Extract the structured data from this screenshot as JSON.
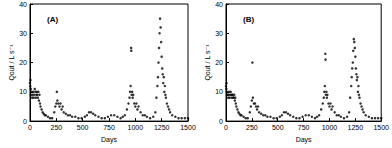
{
  "chart_data": [
    {
      "type": "scatter",
      "title": "(A)",
      "x_label": "Days",
      "y_label": "Qout / L s⁻¹",
      "color": "#000000",
      "marker": "circle",
      "grid": false,
      "xlim": [
        0,
        1500
      ],
      "xticks": [
        0,
        250,
        500,
        750,
        1000,
        1250,
        1500
      ],
      "ylim": [
        0,
        40
      ],
      "yticks": [
        0,
        10,
        20,
        30,
        40
      ],
      "x": [
        0,
        3,
        5,
        8,
        10,
        15,
        20,
        25,
        30,
        35,
        40,
        45,
        50,
        55,
        60,
        65,
        70,
        75,
        80,
        85,
        90,
        95,
        100,
        110,
        120,
        130,
        140,
        150,
        170,
        190,
        210,
        230,
        240,
        250,
        255,
        260,
        270,
        280,
        290,
        300,
        310,
        320,
        340,
        360,
        380,
        400,
        430,
        460,
        490,
        520,
        540,
        560,
        580,
        600,
        620,
        650,
        680,
        710,
        740,
        770,
        800,
        830,
        860,
        880,
        900,
        920,
        935,
        945,
        950,
        955,
        960,
        962,
        965,
        970,
        975,
        980,
        990,
        1000,
        1010,
        1020,
        1030,
        1050,
        1070,
        1090,
        1110,
        1140,
        1170,
        1190,
        1200,
        1210,
        1215,
        1220,
        1225,
        1230,
        1235,
        1240,
        1245,
        1250,
        1255,
        1260,
        1265,
        1270,
        1275,
        1280,
        1285,
        1290,
        1300,
        1310,
        1320,
        1330,
        1350,
        1380,
        1410,
        1440,
        1470,
        1500
      ],
      "values": [
        13,
        12,
        14,
        11,
        9,
        10,
        8,
        9,
        10,
        8,
        9,
        11,
        10,
        8,
        9,
        10,
        9,
        8,
        10,
        7,
        9,
        6,
        5,
        4,
        3,
        2.5,
        2,
        2,
        1.5,
        1,
        1,
        3,
        5,
        6,
        10,
        7,
        6,
        5,
        6,
        4,
        5,
        3,
        2.5,
        2,
        2,
        1.5,
        1.5,
        1,
        1,
        1.5,
        2,
        3,
        3,
        2.5,
        2,
        1.5,
        1,
        1,
        1.5,
        2,
        2,
        1.5,
        1,
        1.5,
        2,
        4,
        6,
        8,
        10,
        12,
        25,
        24,
        9,
        10,
        8,
        9,
        6,
        5,
        6,
        4,
        5,
        3,
        2,
        2,
        1.5,
        1,
        1.5,
        3,
        8,
        12,
        15,
        20,
        25,
        30,
        35,
        32,
        27,
        22,
        18,
        16,
        13,
        15,
        10,
        12,
        9,
        8,
        6,
        5,
        4,
        3,
        2,
        1.5,
        1,
        1,
        1,
        1
      ]
    },
    {
      "type": "scatter",
      "title": "(B)",
      "x_label": "Days",
      "y_label": "Qout / L s⁻¹",
      "color": "#000000",
      "marker": "circle",
      "grid": false,
      "xlim": [
        0,
        1500
      ],
      "xticks": [
        0,
        250,
        500,
        750,
        1000,
        1250,
        1500
      ],
      "ylim": [
        0,
        40
      ],
      "yticks": [
        0,
        10,
        20,
        30,
        40
      ],
      "x": [
        0,
        3,
        5,
        8,
        10,
        15,
        20,
        25,
        30,
        35,
        40,
        45,
        50,
        55,
        60,
        65,
        70,
        75,
        80,
        85,
        90,
        95,
        100,
        110,
        120,
        130,
        140,
        150,
        170,
        190,
        210,
        230,
        240,
        250,
        255,
        260,
        270,
        280,
        290,
        300,
        310,
        320,
        340,
        360,
        380,
        400,
        430,
        460,
        490,
        520,
        540,
        560,
        580,
        600,
        620,
        650,
        680,
        710,
        740,
        770,
        800,
        830,
        860,
        880,
        900,
        920,
        935,
        945,
        950,
        955,
        960,
        962,
        965,
        970,
        975,
        980,
        990,
        1000,
        1010,
        1020,
        1030,
        1050,
        1070,
        1090,
        1110,
        1140,
        1170,
        1190,
        1200,
        1210,
        1215,
        1220,
        1225,
        1230,
        1235,
        1240,
        1245,
        1250,
        1255,
        1260,
        1265,
        1270,
        1275,
        1280,
        1285,
        1290,
        1300,
        1310,
        1320,
        1330,
        1350,
        1380,
        1410,
        1440,
        1470,
        1500
      ],
      "values": [
        12,
        11,
        13,
        10,
        9,
        9,
        8,
        9,
        10,
        8,
        9,
        10,
        9,
        8,
        9,
        9,
        8,
        8,
        9,
        7,
        8,
        6,
        5,
        4,
        3,
        2.5,
        2,
        2,
        1.5,
        1,
        1,
        3,
        5,
        7,
        20,
        8,
        6,
        6,
        5,
        4,
        5,
        3,
        2.5,
        2,
        2,
        1.5,
        1.5,
        1,
        1,
        1.5,
        2,
        3,
        3,
        2.5,
        2,
        1.5,
        1,
        1,
        1.5,
        2,
        2,
        1.5,
        1,
        1.5,
        2,
        4,
        6,
        8,
        10,
        12,
        23,
        21,
        9,
        10,
        8,
        9,
        6,
        5,
        6,
        4,
        5,
        3,
        2,
        2,
        1.5,
        1,
        1.5,
        3,
        8,
        12,
        15,
        18,
        20,
        24,
        28,
        27,
        25,
        22,
        18,
        16,
        14,
        15,
        10,
        12,
        9,
        8,
        6,
        5,
        4,
        3,
        2,
        1.5,
        1,
        1,
        1,
        1
      ]
    }
  ]
}
